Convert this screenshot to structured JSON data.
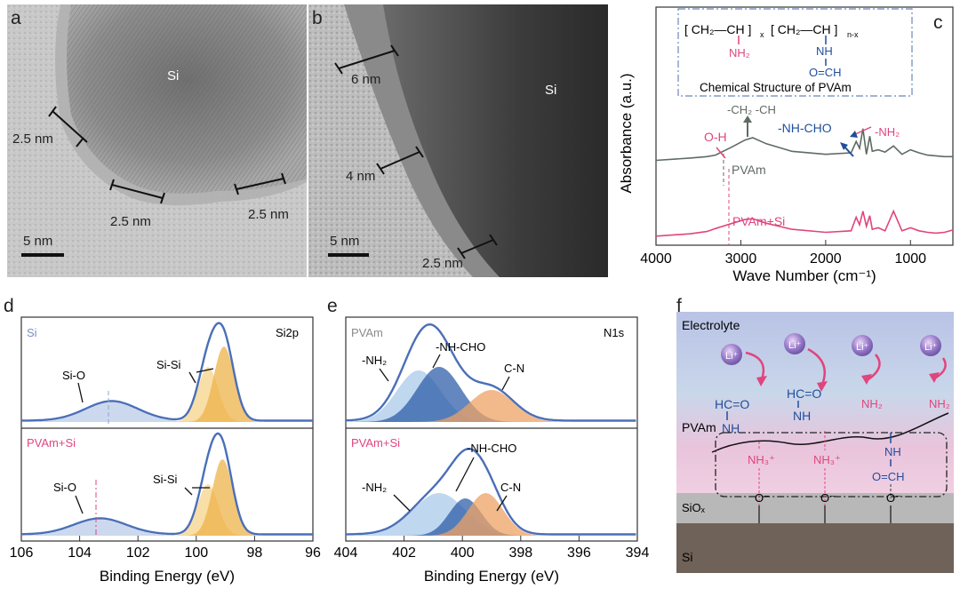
{
  "panel_letters": {
    "a": "a",
    "b": "b",
    "c": "c",
    "d": "d",
    "e": "e",
    "f": "f"
  },
  "panel_a": {
    "core_label": "Si",
    "thickness_labels": [
      "2.5 nm",
      "2.5 nm",
      "2.5 nm"
    ],
    "scale_bar": "5 nm"
  },
  "panel_b": {
    "core_label": "Si",
    "thickness_labels": [
      "6 nm",
      "4 nm",
      "2.5 nm"
    ],
    "scale_bar": "5 nm"
  },
  "panel_c": {
    "structure_label": "Chemical Structure of PVAm",
    "formula": {
      "unit1": "[ CH₂—CH ]",
      "sub_x": "x",
      "unit2": "[ CH₂—CH ]",
      "sub_nx": "n-x",
      "nh2": "NH₂",
      "nh": "NH",
      "ocho": "O=CH"
    },
    "annotations": {
      "ch": "-CH₂ -CH",
      "oh": "O-H",
      "nhcho": "-NH-CHO",
      "nh2": "-NH₂",
      "pvam": "PVAm",
      "pvamsi": "PVAm+Si"
    },
    "colors": {
      "pvam": "#5f6b63",
      "pvamsi": "#e0457e",
      "blue": "#1f4e9c",
      "pink": "#e0457e"
    }
  },
  "panel_d": {
    "element": "Si",
    "orbital": "Si2p",
    "lower_label": "PVAm+Si",
    "peak_labels": {
      "sio_top": "Si-O",
      "sisi_top": "Si-Si",
      "sio_bot": "Si-O",
      "sisi_bot": "Si-Si"
    }
  },
  "panel_e": {
    "sample": "PVAm",
    "orbital": "N1s",
    "lower_label": "PVAm+Si",
    "peak_labels": {
      "nh2_top": "-NH₂",
      "nhcho_top": "-NH-CHO",
      "cn_top": "C-N",
      "nh2_bot": "-NH₂",
      "nhcho_bot": "-NH-CHO",
      "cn_bot": "C-N"
    }
  },
  "panel_f": {
    "electrolyte": "Electrolyte",
    "pvam": "PVAm",
    "siox": "SiOₓ",
    "si": "Si",
    "li": "Li⁺",
    "hco": "HC=O",
    "nh": "NH",
    "nh2": "NH₂",
    "nh3": "NH₃⁺",
    "ocha": "O=CH",
    "ominus": "O⁻"
  },
  "chart_data": [
    {
      "type": "line",
      "title": "",
      "xlabel": "Wave Number (cm⁻¹)",
      "ylabel": "Absorbance (a.u.)",
      "xlim": [
        4000,
        500
      ],
      "xticks": [
        4000,
        3000,
        2000,
        1000
      ],
      "series": [
        {
          "name": "PVAm",
          "x": [
            4000,
            3600,
            3400,
            3300,
            3100,
            2950,
            2860,
            2700,
            2400,
            2000,
            1700,
            1640,
            1600,
            1560,
            1520,
            1480,
            1450,
            1380,
            1300,
            1200,
            1100,
            1000,
            900,
            800,
            700,
            600,
            500
          ],
          "y": [
            0.5,
            0.53,
            0.55,
            0.57,
            0.68,
            0.77,
            0.8,
            0.72,
            0.62,
            0.58,
            0.6,
            0.75,
            0.66,
            0.92,
            0.58,
            0.82,
            0.62,
            0.64,
            0.61,
            0.69,
            0.58,
            0.64,
            0.6,
            0.57,
            0.56,
            0.55,
            0.55
          ]
        },
        {
          "name": "PVAm+Si",
          "x": [
            4000,
            3600,
            3400,
            3300,
            3100,
            2950,
            2860,
            2700,
            2400,
            2000,
            1700,
            1640,
            1600,
            1560,
            1520,
            1480,
            1450,
            1380,
            1300,
            1200,
            1100,
            1000,
            900,
            800,
            700,
            600,
            500
          ],
          "y": [
            0.05,
            0.08,
            0.11,
            0.15,
            0.22,
            0.27,
            0.28,
            0.22,
            0.14,
            0.1,
            0.12,
            0.3,
            0.2,
            0.38,
            0.18,
            0.32,
            0.14,
            0.16,
            0.12,
            0.38,
            0.12,
            0.16,
            0.12,
            0.1,
            0.09,
            0.1,
            0.13
          ]
        }
      ]
    },
    {
      "type": "area",
      "title": "Si2p",
      "xlabel": "Binding Energy (eV)",
      "ylabel": "",
      "xlim": [
        106,
        96
      ],
      "xticks": [
        106,
        104,
        102,
        100,
        98,
        96
      ],
      "panels": [
        {
          "name": "Si",
          "peaks": [
            {
              "label": "Si-O",
              "center": 102.9,
              "height": 0.22,
              "width": 0.9
            },
            {
              "label": "Si-Si 2p1/2",
              "center": 99.6,
              "height": 0.62,
              "width": 0.35
            },
            {
              "label": "Si-Si 2p3/2",
              "center": 99.05,
              "height": 0.85,
              "width": 0.35
            }
          ]
        },
        {
          "name": "PVAm+Si",
          "peaks": [
            {
              "label": "Si-O",
              "center": 103.3,
              "height": 0.18,
              "width": 0.9
            },
            {
              "label": "Si-Si 2p1/2",
              "center": 99.6,
              "height": 0.58,
              "width": 0.35
            },
            {
              "label": "Si-Si 2p3/2",
              "center": 99.1,
              "height": 0.86,
              "width": 0.35
            }
          ]
        }
      ]
    },
    {
      "type": "area",
      "title": "N1s",
      "xlabel": "Binding Energy (eV)",
      "ylabel": "",
      "xlim": [
        404,
        394
      ],
      "xticks": [
        404,
        402,
        400,
        398,
        396,
        394
      ],
      "panels": [
        {
          "name": "PVAm",
          "peaks": [
            {
              "label": "-NH₂",
              "center": 401.5,
              "height": 0.58,
              "width": 0.75
            },
            {
              "label": "-NH-CHO",
              "center": 400.8,
              "height": 0.62,
              "width": 0.75
            },
            {
              "label": "C-N",
              "center": 399.0,
              "height": 0.36,
              "width": 0.75
            }
          ]
        },
        {
          "name": "PVAm+Si",
          "peaks": [
            {
              "label": "-NH₂",
              "center": 400.8,
              "height": 0.48,
              "width": 0.9
            },
            {
              "label": "-NH-CHO",
              "center": 399.9,
              "height": 0.42,
              "width": 0.55
            },
            {
              "label": "C-N",
              "center": 399.2,
              "height": 0.48,
              "width": 0.6
            }
          ]
        }
      ]
    }
  ]
}
